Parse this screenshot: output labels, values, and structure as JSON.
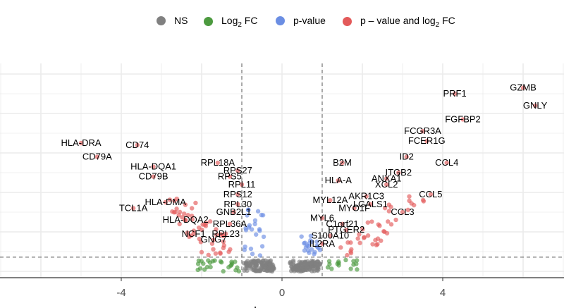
{
  "chart_data": {
    "type": "scatter",
    "title": "",
    "xlabel": "Log",
    "ylabel": "",
    "xlim": [
      -7,
      7
    ],
    "x_ticks": [
      -4,
      0,
      4
    ],
    "x_tick_labels": [
      "-4",
      "0",
      "4"
    ],
    "fc_cutoff": 1,
    "p_cutoff_line": true,
    "grid": true,
    "legend_position": "top",
    "legend": [
      {
        "name": "NS",
        "color": "#808080"
      },
      {
        "name": "Log2 FC",
        "label_main": "Log",
        "label_sub": "2",
        "label_tail": " FC",
        "color": "#4c9a3f"
      },
      {
        "name": "p-value",
        "color": "#6b8ee3"
      },
      {
        "name": "p – value and log2 FC",
        "label_main": "p – value and log",
        "label_sub": "2",
        "label_tail": " FC",
        "color": "#e35a5a"
      }
    ],
    "labeled_genes": [
      {
        "gene": "GZMB",
        "x": 6.0,
        "y": 9.3
      },
      {
        "gene": "PRF1",
        "x": 4.3,
        "y": 9.0
      },
      {
        "gene": "GNLY",
        "x": 6.3,
        "y": 8.4
      },
      {
        "gene": "FGFBP2",
        "x": 4.5,
        "y": 7.7
      },
      {
        "gene": "FCGR3A",
        "x": 3.5,
        "y": 7.1
      },
      {
        "gene": "FCER1G",
        "x": 3.6,
        "y": 6.6
      },
      {
        "gene": "HLA-DRA",
        "x": -5.0,
        "y": 6.5
      },
      {
        "gene": "CD74",
        "x": -3.6,
        "y": 6.4
      },
      {
        "gene": "CD79A",
        "x": -4.6,
        "y": 5.8
      },
      {
        "gene": "ID2",
        "x": 3.1,
        "y": 5.8
      },
      {
        "gene": "B2M",
        "x": 1.5,
        "y": 5.5
      },
      {
        "gene": "CCL4",
        "x": 4.1,
        "y": 5.5
      },
      {
        "gene": "RPL18A",
        "x": -1.6,
        "y": 5.5
      },
      {
        "gene": "HLA-DQA1",
        "x": -3.2,
        "y": 5.3
      },
      {
        "gene": "RPS27",
        "x": -1.1,
        "y": 5.1
      },
      {
        "gene": "ITGB2",
        "x": 2.9,
        "y": 5.0
      },
      {
        "gene": "CD79B",
        "x": -3.2,
        "y": 4.8
      },
      {
        "gene": "RPS5",
        "x": -1.3,
        "y": 4.8
      },
      {
        "gene": "ANXA1",
        "x": 2.6,
        "y": 4.7
      },
      {
        "gene": "HLA-A",
        "x": 1.4,
        "y": 4.6
      },
      {
        "gene": "XCL2",
        "x": 2.6,
        "y": 4.4
      },
      {
        "gene": "RPL11",
        "x": -1.0,
        "y": 4.4
      },
      {
        "gene": "CCL5",
        "x": 3.7,
        "y": 3.9
      },
      {
        "gene": "RPS12",
        "x": -1.1,
        "y": 3.9
      },
      {
        "gene": "AKR1C3",
        "x": 2.1,
        "y": 3.8
      },
      {
        "gene": "MYL12A",
        "x": 1.2,
        "y": 3.6
      },
      {
        "gene": "HLA-DMA",
        "x": -2.9,
        "y": 3.5
      },
      {
        "gene": "RPL30",
        "x": -1.1,
        "y": 3.4
      },
      {
        "gene": "LGALS1",
        "x": 2.2,
        "y": 3.4
      },
      {
        "gene": "TCL1A",
        "x": -3.7,
        "y": 3.2
      },
      {
        "gene": "MYO1F",
        "x": 1.8,
        "y": 3.2
      },
      {
        "gene": "GNB2L1",
        "x": -1.2,
        "y": 3.0
      },
      {
        "gene": "CCL3",
        "x": 3.0,
        "y": 3.0
      },
      {
        "gene": "HLA-DQA2",
        "x": -2.4,
        "y": 2.6
      },
      {
        "gene": "MYL6",
        "x": 1.0,
        "y": 2.7
      },
      {
        "gene": "C1orf21",
        "x": 1.5,
        "y": 2.4
      },
      {
        "gene": "RPL36A",
        "x": -1.3,
        "y": 2.4
      },
      {
        "gene": "PTGER2",
        "x": 1.6,
        "y": 2.1
      },
      {
        "gene": "NCF1",
        "x": -2.2,
        "y": 1.9
      },
      {
        "gene": "RPL23",
        "x": -1.4,
        "y": 1.9
      },
      {
        "gene": "S100A10",
        "x": 1.2,
        "y": 1.8
      },
      {
        "gene": "GNG7",
        "x": -1.7,
        "y": 1.6
      },
      {
        "gene": "IL2RA",
        "x": 1.0,
        "y": 1.4
      }
    ]
  }
}
